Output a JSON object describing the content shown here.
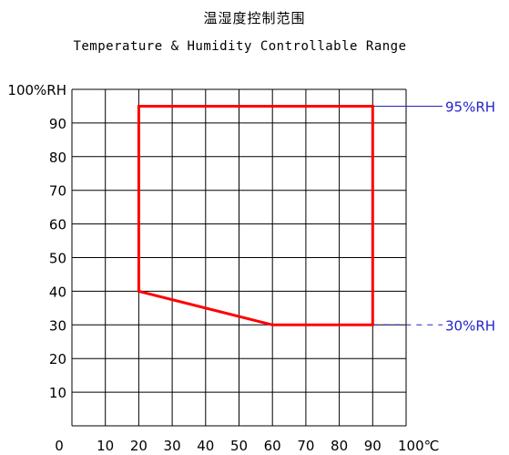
{
  "chart_data": {
    "type": "area",
    "title": "温湿度控制范围",
    "subtitle": "Temperature & Humidity Controllable Range",
    "x_tick_labels": [
      "0",
      "10",
      "20",
      "30",
      "40",
      "50",
      "60",
      "70",
      "80",
      "90",
      "100℃"
    ],
    "y_tick_labels": [
      "100%RH",
      "90",
      "80",
      "70",
      "60",
      "50",
      "40",
      "30",
      "20",
      "10"
    ],
    "xlim": [
      0,
      100
    ],
    "ylim": [
      0,
      100
    ],
    "grid": true,
    "series": [
      {
        "x": [
          20,
          20,
          90,
          90,
          60,
          20
        ],
        "y": [
          40,
          95,
          95,
          30,
          30,
          40
        ]
      }
    ],
    "annotations": [
      {
        "label": "95%RH",
        "y": 95,
        "line_style": "solid"
      },
      {
        "label": "30%RH",
        "y": 30,
        "line_style": "dashed"
      }
    ],
    "colors": {
      "boundary": "#ff0000",
      "annotation": "#2323c8",
      "grid": "#000000"
    }
  }
}
